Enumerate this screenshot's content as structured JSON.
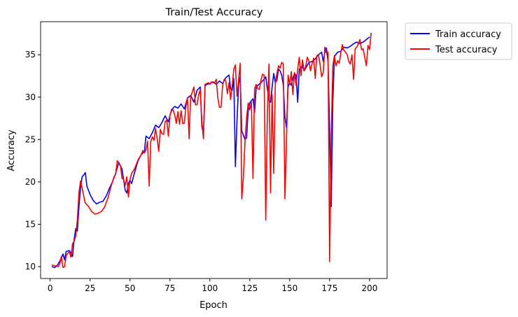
{
  "chart_data": {
    "type": "line",
    "title": "Train/Test Accuracy",
    "xlabel": "Epoch",
    "ylabel": "Accuracy",
    "xlim": [
      -6,
      211
    ],
    "ylim": [
      8.6,
      38.9
    ],
    "xticks": [
      0,
      25,
      50,
      75,
      100,
      125,
      150,
      175,
      200
    ],
    "yticks": [
      10,
      15,
      20,
      25,
      30,
      35
    ],
    "grid": false,
    "legend_position": "outside-top-right",
    "series": [
      {
        "name": "Train accuracy",
        "color": "#0000ff",
        "points": [
          [
            1,
            10
          ],
          [
            3,
            9.9
          ],
          [
            5,
            10.3
          ],
          [
            7,
            11
          ],
          [
            8,
            11.5
          ],
          [
            9,
            10.8
          ],
          [
            10,
            11.8
          ],
          [
            12,
            11.9
          ],
          [
            13,
            11.6
          ],
          [
            14,
            11.2
          ],
          [
            15,
            13.2
          ],
          [
            16,
            14.5
          ],
          [
            17,
            14.2
          ],
          [
            18,
            17
          ],
          [
            19,
            19.3
          ],
          [
            20,
            20.6
          ],
          [
            21,
            20.8
          ],
          [
            22,
            21.1
          ],
          [
            23,
            19.5
          ],
          [
            25,
            18.5
          ],
          [
            27,
            17.8
          ],
          [
            29,
            17.4
          ],
          [
            31,
            17.6
          ],
          [
            33,
            17.7
          ],
          [
            35,
            18.3
          ],
          [
            37,
            19.2
          ],
          [
            39,
            20
          ],
          [
            41,
            21
          ],
          [
            43,
            22.3
          ],
          [
            45,
            21.5
          ],
          [
            47,
            19
          ],
          [
            48,
            18.7
          ],
          [
            49,
            19.8
          ],
          [
            50,
            20.2
          ],
          [
            51,
            19.8
          ],
          [
            53,
            21.2
          ],
          [
            55,
            22.5
          ],
          [
            57,
            23.2
          ],
          [
            59,
            23.6
          ],
          [
            60,
            25.4
          ],
          [
            62,
            25.1
          ],
          [
            64,
            25.8
          ],
          [
            66,
            26.7
          ],
          [
            68,
            26.4
          ],
          [
            70,
            27
          ],
          [
            72,
            27.8
          ],
          [
            74,
            27.1
          ],
          [
            76,
            28.5
          ],
          [
            78,
            28.9
          ],
          [
            80,
            28.7
          ],
          [
            82,
            29.2
          ],
          [
            84,
            28.6
          ],
          [
            86,
            29.9
          ],
          [
            88,
            30.2
          ],
          [
            90,
            29.4
          ],
          [
            92,
            30.8
          ],
          [
            94,
            31.2
          ],
          [
            95,
            26.5
          ],
          [
            96,
            25.7
          ],
          [
            97,
            31.3
          ],
          [
            98,
            31.5
          ],
          [
            100,
            31.6
          ],
          [
            102,
            31.8
          ],
          [
            104,
            31.5
          ],
          [
            106,
            31.9
          ],
          [
            108,
            31.6
          ],
          [
            110,
            32.3
          ],
          [
            112,
            32.6
          ],
          [
            113,
            31
          ],
          [
            114,
            30.8
          ],
          [
            115,
            32.2
          ],
          [
            116,
            21.8
          ],
          [
            117,
            27.2
          ],
          [
            118,
            31.5
          ],
          [
            119,
            32.4
          ],
          [
            120,
            26
          ],
          [
            122,
            25
          ],
          [
            123,
            25.2
          ],
          [
            124,
            28.4
          ],
          [
            125,
            29.3
          ],
          [
            126,
            29.6
          ],
          [
            127,
            29.8
          ],
          [
            128,
            28.2
          ],
          [
            129,
            31.1
          ],
          [
            130,
            31.4
          ],
          [
            132,
            31.7
          ],
          [
            134,
            32.1
          ],
          [
            135,
            32.4
          ],
          [
            136,
            31
          ],
          [
            137,
            29.6
          ],
          [
            138,
            29.4
          ],
          [
            139,
            31.2
          ],
          [
            140,
            32.8
          ],
          [
            141,
            31.7
          ],
          [
            142,
            32
          ],
          [
            143,
            33.3
          ],
          [
            144,
            33.1
          ],
          [
            145,
            32.6
          ],
          [
            146,
            31.4
          ],
          [
            147,
            27.7
          ],
          [
            148,
            26.4
          ],
          [
            149,
            31.2
          ],
          [
            150,
            31.7
          ],
          [
            151,
            31.4
          ],
          [
            152,
            32.2
          ],
          [
            153,
            32.8
          ],
          [
            154,
            32.6
          ],
          [
            155,
            29.4
          ],
          [
            156,
            33.3
          ],
          [
            157,
            33.5
          ],
          [
            158,
            33.7
          ],
          [
            159,
            33.1
          ],
          [
            160,
            33.4
          ],
          [
            162,
            34.1
          ],
          [
            164,
            34.2
          ],
          [
            166,
            34.5
          ],
          [
            168,
            35
          ],
          [
            170,
            35.3
          ],
          [
            171,
            34.2
          ],
          [
            172,
            35.3
          ],
          [
            173,
            35.8
          ],
          [
            174,
            34.2
          ],
          [
            175,
            26
          ],
          [
            176,
            17.1
          ],
          [
            177,
            29.5
          ],
          [
            178,
            34.8
          ],
          [
            180,
            35.3
          ],
          [
            182,
            35.4
          ],
          [
            184,
            35.9
          ],
          [
            186,
            35.8
          ],
          [
            188,
            36
          ],
          [
            190,
            36.3
          ],
          [
            192,
            36.5
          ],
          [
            194,
            36.3
          ],
          [
            196,
            36.5
          ],
          [
            198,
            36.8
          ],
          [
            200,
            37.1
          ]
        ]
      },
      {
        "name": "Test accuracy",
        "color": "#ff0000",
        "points": [
          [
            1,
            10.2
          ],
          [
            3,
            10.1
          ],
          [
            5,
            10
          ],
          [
            6,
            10.3
          ],
          [
            7,
            11.2
          ],
          [
            8,
            9.9
          ],
          [
            9,
            10
          ],
          [
            10,
            11.3
          ],
          [
            12,
            11.8
          ],
          [
            13,
            11.1
          ],
          [
            14,
            12.7
          ],
          [
            15,
            13
          ],
          [
            16,
            13.6
          ],
          [
            17,
            15.5
          ],
          [
            18,
            18.7
          ],
          [
            19,
            20.1
          ],
          [
            20,
            19.3
          ],
          [
            21,
            18.3
          ],
          [
            22,
            17.5
          ],
          [
            24,
            17.1
          ],
          [
            26,
            16.5
          ],
          [
            28,
            16.2
          ],
          [
            30,
            16.3
          ],
          [
            32,
            16.5
          ],
          [
            34,
            17
          ],
          [
            36,
            18
          ],
          [
            38,
            19.4
          ],
          [
            40,
            20.6
          ],
          [
            41,
            20.9
          ],
          [
            42,
            22.5
          ],
          [
            43,
            22.2
          ],
          [
            44,
            21.9
          ],
          [
            45,
            20.4
          ],
          [
            46,
            20.3
          ],
          [
            47,
            19.6
          ],
          [
            48,
            20.6
          ],
          [
            49,
            18.2
          ],
          [
            50,
            20.3
          ],
          [
            51,
            21
          ],
          [
            53,
            21.6
          ],
          [
            55,
            22.6
          ],
          [
            57,
            23.2
          ],
          [
            58,
            23.7
          ],
          [
            59,
            23.4
          ],
          [
            60,
            23.8
          ],
          [
            61,
            24.8
          ],
          [
            62,
            19.5
          ],
          [
            63,
            24.8
          ],
          [
            64,
            25.3
          ],
          [
            65,
            24.9
          ],
          [
            66,
            26.3
          ],
          [
            67,
            25.1
          ],
          [
            68,
            23.6
          ],
          [
            69,
            26.2
          ],
          [
            70,
            25.7
          ],
          [
            71,
            25.6
          ],
          [
            72,
            27.1
          ],
          [
            73,
            27.3
          ],
          [
            74,
            25.4
          ],
          [
            75,
            27.8
          ],
          [
            76,
            28.4
          ],
          [
            77,
            28.5
          ],
          [
            78,
            27.9
          ],
          [
            79,
            26.9
          ],
          [
            80,
            28.3
          ],
          [
            81,
            26.8
          ],
          [
            82,
            28.4
          ],
          [
            83,
            26.9
          ],
          [
            84,
            26.9
          ],
          [
            85,
            28.9
          ],
          [
            86,
            29.9
          ],
          [
            87,
            25.1
          ],
          [
            88,
            30.1
          ],
          [
            89,
            30.6
          ],
          [
            90,
            31.2
          ],
          [
            91,
            29.1
          ],
          [
            92,
            29.1
          ],
          [
            93,
            30.3
          ],
          [
            94,
            30.9
          ],
          [
            95,
            27.1
          ],
          [
            96,
            25.1
          ],
          [
            97,
            31.5
          ],
          [
            98,
            31.6
          ],
          [
            99,
            31.7
          ],
          [
            100,
            31.5
          ],
          [
            101,
            31.8
          ],
          [
            102,
            31.7
          ],
          [
            103,
            31.7
          ],
          [
            104,
            32.1
          ],
          [
            105,
            29.9
          ],
          [
            106,
            28.8
          ],
          [
            107,
            28.8
          ],
          [
            108,
            31.4
          ],
          [
            109,
            32.1
          ],
          [
            110,
            31.9
          ],
          [
            111,
            30.4
          ],
          [
            112,
            31.7
          ],
          [
            113,
            29.7
          ],
          [
            114,
            31.4
          ],
          [
            115,
            33.3
          ],
          [
            116,
            33.8
          ],
          [
            117,
            30.1
          ],
          [
            118,
            32
          ],
          [
            119,
            34
          ],
          [
            120,
            18
          ],
          [
            121,
            20.6
          ],
          [
            122,
            24.8
          ],
          [
            123,
            27.6
          ],
          [
            124,
            29.3
          ],
          [
            125,
            28.5
          ],
          [
            126,
            29.4
          ],
          [
            127,
            20.4
          ],
          [
            128,
            31
          ],
          [
            129,
            31.5
          ],
          [
            130,
            31
          ],
          [
            131,
            30.9
          ],
          [
            132,
            32
          ],
          [
            133,
            32.7
          ],
          [
            134,
            32.6
          ],
          [
            135,
            15.5
          ],
          [
            136,
            27.9
          ],
          [
            137,
            33.9
          ],
          [
            138,
            18.7
          ],
          [
            139,
            30.3
          ],
          [
            140,
            21
          ],
          [
            141,
            31.7
          ],
          [
            142,
            32.8
          ],
          [
            143,
            33.7
          ],
          [
            144,
            33.4
          ],
          [
            145,
            34.1
          ],
          [
            146,
            33.9
          ],
          [
            147,
            18
          ],
          [
            148,
            24.9
          ],
          [
            149,
            32.6
          ],
          [
            150,
            31.5
          ],
          [
            151,
            33
          ],
          [
            152,
            30.3
          ],
          [
            153,
            32.9
          ],
          [
            154,
            31.4
          ],
          [
            155,
            33.3
          ],
          [
            156,
            34.7
          ],
          [
            157,
            32.5
          ],
          [
            158,
            34.4
          ],
          [
            159,
            33.1
          ],
          [
            160,
            33.6
          ],
          [
            161,
            34.7
          ],
          [
            162,
            34.3
          ],
          [
            163,
            33.1
          ],
          [
            164,
            33.9
          ],
          [
            165,
            34.6
          ],
          [
            166,
            32.2
          ],
          [
            167,
            34.9
          ],
          [
            168,
            35
          ],
          [
            169,
            33.9
          ],
          [
            170,
            32.4
          ],
          [
            171,
            32.9
          ],
          [
            172,
            35.9
          ],
          [
            173,
            35.2
          ],
          [
            174,
            35.3
          ],
          [
            175,
            10.6
          ],
          [
            176,
            25.4
          ],
          [
            177,
            33.7
          ],
          [
            178,
            34.9
          ],
          [
            179,
            33.7
          ],
          [
            180,
            34.3
          ],
          [
            181,
            34
          ],
          [
            182,
            35.2
          ],
          [
            183,
            36.2
          ],
          [
            184,
            35.5
          ],
          [
            185,
            35.3
          ],
          [
            186,
            35
          ],
          [
            187,
            34.2
          ],
          [
            188,
            33.9
          ],
          [
            189,
            35
          ],
          [
            190,
            32.1
          ],
          [
            191,
            35.7
          ],
          [
            192,
            35.9
          ],
          [
            193,
            36.3
          ],
          [
            194,
            36.8
          ],
          [
            195,
            35.6
          ],
          [
            196,
            35.7
          ],
          [
            197,
            34.7
          ],
          [
            198,
            33.7
          ],
          [
            199,
            36.1
          ],
          [
            200,
            35.6
          ],
          [
            201,
            37.6
          ]
        ]
      }
    ]
  }
}
